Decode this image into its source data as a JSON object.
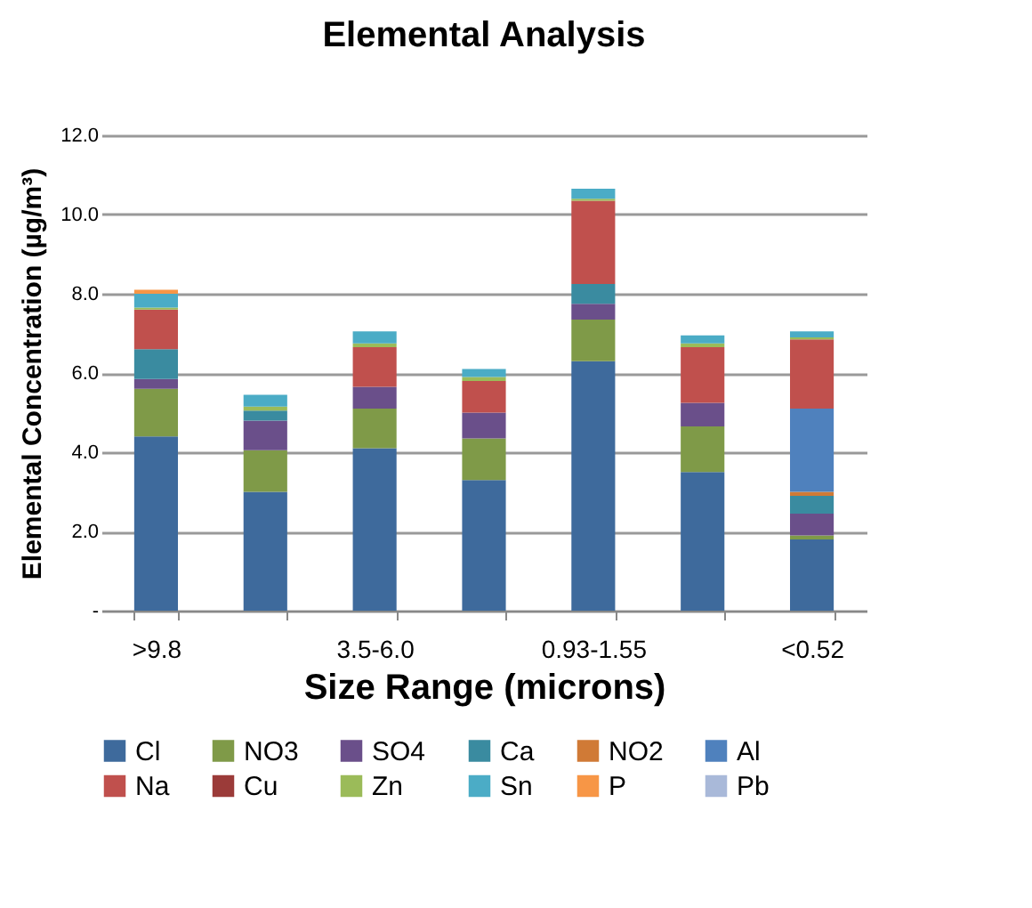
{
  "chart_data": {
    "type": "bar",
    "stacked": true,
    "title": "Elemental Analysis",
    "xlabel": "Size Range (microns)",
    "ylabel": "Elemental Concentration (µg/m³)",
    "categories": [
      ">9.8",
      null,
      "3.5-6.0",
      null,
      "0.93-1.55",
      null,
      "<0.52"
    ],
    "ylim": [
      0,
      12
    ],
    "yticks": [
      {
        "value": 0,
        "label": "-"
      },
      {
        "value": 2,
        "label": "2.0"
      },
      {
        "value": 4,
        "label": "4.0"
      },
      {
        "value": 6,
        "label": "6.0"
      },
      {
        "value": 8,
        "label": "8.0"
      },
      {
        "value": 10,
        "label": "10.0"
      },
      {
        "value": 12,
        "label": "12.0"
      }
    ],
    "grid": "y",
    "legend": "bottom",
    "series": [
      {
        "name": "Cl",
        "color": "#3e6a9c",
        "values": [
          4.4,
          3.0,
          4.1,
          3.3,
          6.3,
          3.5,
          1.8
        ]
      },
      {
        "name": "NO3",
        "color": "#7f9a48",
        "values": [
          1.2,
          1.05,
          1.0,
          1.05,
          1.05,
          1.15,
          0.1
        ]
      },
      {
        "name": "SO4",
        "color": "#6a4f8a",
        "values": [
          0.25,
          0.75,
          0.55,
          0.65,
          0.4,
          0.6,
          0.55
        ]
      },
      {
        "name": "Ca",
        "color": "#3a8ba0",
        "values": [
          0.75,
          0.25,
          0,
          0,
          0.5,
          0,
          0.45
        ]
      },
      {
        "name": "NO2",
        "color": "#d07a36",
        "values": [
          0,
          0,
          0,
          0,
          0,
          0,
          0.1
        ]
      },
      {
        "name": "Al",
        "color": "#4f81bd",
        "values": [
          0,
          0,
          0,
          0,
          0,
          0,
          2.1
        ]
      },
      {
        "name": "Na",
        "color": "#c0504d",
        "values": [
          1.0,
          0,
          1.0,
          0.8,
          2.1,
          1.4,
          1.75
        ]
      },
      {
        "name": "Cu",
        "color": "#9b3b39",
        "values": [
          0,
          0,
          0,
          0,
          0,
          0,
          0
        ]
      },
      {
        "name": "Zn",
        "color": "#9bbb59",
        "values": [
          0.05,
          0.1,
          0.1,
          0.1,
          0.05,
          0.1,
          0.05
        ]
      },
      {
        "name": "Sn",
        "color": "#4bacc6",
        "values": [
          0.35,
          0.3,
          0.3,
          0.2,
          0.25,
          0.2,
          0.15
        ]
      },
      {
        "name": "P",
        "color": "#f79646",
        "values": [
          0.1,
          0,
          0,
          0,
          0,
          0,
          0
        ]
      },
      {
        "name": "Pb",
        "color": "#a9b9d9",
        "values": [
          0,
          0,
          0,
          0,
          0,
          0,
          0
        ]
      }
    ]
  }
}
